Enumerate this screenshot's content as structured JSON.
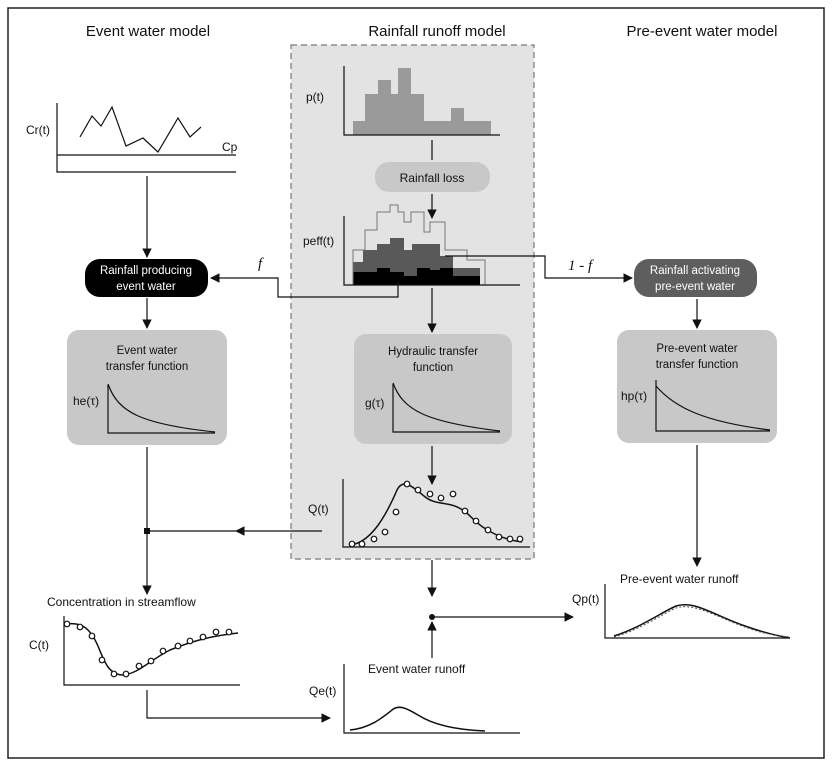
{
  "titles": {
    "event": "Event water model",
    "rainfall": "Rainfall runoff model",
    "pre_event": "Pre-event water model"
  },
  "graphs": {
    "cr": "Cr(t)",
    "cp": "Cp",
    "p": "p(t)",
    "peff": "peff(t)",
    "he": "he(τ)",
    "g": "g(τ)",
    "hp": "hp(τ)",
    "q": "Q(t)",
    "c": "C(t)",
    "qp": "Qp(t)",
    "qe": "Qe(t)"
  },
  "boxes": {
    "rainfall_loss": "Rainfall loss",
    "producing_l1": "Rainfall producing",
    "producing_l2": "event water",
    "activating_l1": "Rainfall activating",
    "activating_l2": "pre-event water",
    "event_tf_l1": "Event water",
    "event_tf_l2": "transfer function",
    "hydraulic_tf_l1": "Hydraulic transfer",
    "hydraulic_tf_l2": "function",
    "pre_tf_l1": "Pre-event water",
    "pre_tf_l2": "transfer function"
  },
  "fractions": {
    "f": "f",
    "one_minus_f": "1 - f"
  },
  "outputs": {
    "concentration": "Concentration in streamflow",
    "pre_event_runoff": "Pre-event water runoff",
    "event_runoff": "Event water runoff"
  },
  "colors": {
    "panel": "#e3e3e3",
    "box": "#c8c8c8",
    "dark_box": "#5e5e5e",
    "black_box": "#000000"
  }
}
